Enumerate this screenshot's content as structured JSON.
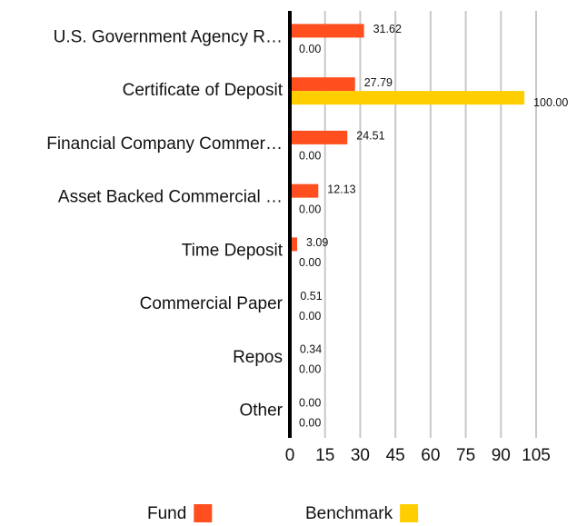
{
  "chart_data": {
    "type": "bar",
    "orientation": "horizontal",
    "categories": [
      "U.S. Government Agency R…",
      "Certificate of Deposit",
      "Financial Company Commer…",
      "Asset Backed Commercial …",
      "Time Deposit",
      "Commercial Paper",
      "Repos",
      "Other"
    ],
    "series": [
      {
        "name": "Fund",
        "color": "#ff4f1f",
        "values": [
          31.62,
          27.79,
          24.51,
          12.13,
          3.09,
          0.51,
          0.34,
          0
        ],
        "value_labels": [
          "31.62",
          "27.79",
          "24.51",
          "12.13",
          "3.09",
          "0.51",
          "0.34",
          "0.00"
        ]
      },
      {
        "name": "Benchmark",
        "color": "#ffce00",
        "values": [
          0,
          100,
          0,
          0,
          0,
          0,
          0,
          0
        ],
        "value_labels": [
          "0.00",
          "100.00",
          "0.00",
          "0.00",
          "0.00",
          "0.00",
          "0.00",
          "0.00"
        ]
      }
    ],
    "xlim": [
      0,
      105
    ],
    "xticks": [
      0,
      15,
      30,
      45,
      60,
      75,
      90,
      105
    ],
    "grid": true
  }
}
